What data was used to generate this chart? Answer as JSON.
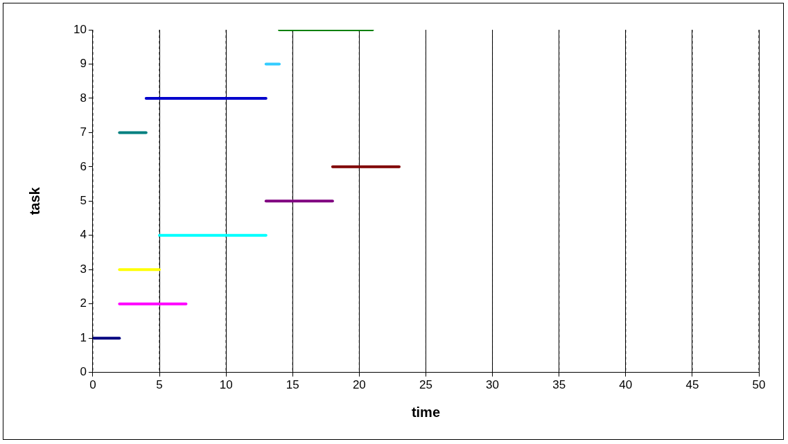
{
  "chart_data": {
    "type": "line",
    "xlabel": "time",
    "ylabel": "task",
    "xlim": [
      0,
      50
    ],
    "xticks": [
      0,
      5,
      10,
      15,
      20,
      25,
      30,
      35,
      40,
      45,
      50
    ],
    "ylim": [
      0,
      10
    ],
    "yticks": [
      0,
      1,
      2,
      3,
      4,
      5,
      6,
      7,
      8,
      9,
      10
    ],
    "grid": "x",
    "legend": false,
    "marker": "none",
    "line_style": "solid",
    "series": [
      {
        "color": "#000080",
        "x": [
          0,
          2
        ],
        "values": [
          1,
          1
        ]
      },
      {
        "color": "#ff00ff",
        "x": [
          2,
          7
        ],
        "values": [
          2,
          2
        ]
      },
      {
        "color": "#ffff00",
        "x": [
          2,
          5
        ],
        "values": [
          3,
          3
        ]
      },
      {
        "color": "#00ffff",
        "x": [
          5,
          13
        ],
        "values": [
          4,
          4
        ]
      },
      {
        "color": "#800080",
        "x": [
          13,
          18
        ],
        "values": [
          5,
          5
        ]
      },
      {
        "color": "#800000",
        "x": [
          18,
          23
        ],
        "values": [
          6,
          6
        ]
      },
      {
        "color": "#008080",
        "x": [
          2,
          4
        ],
        "values": [
          7,
          7
        ]
      },
      {
        "color": "#0000cc",
        "x": [
          4,
          13
        ],
        "values": [
          8,
          8
        ]
      },
      {
        "color": "#33ccff",
        "x": [
          13,
          14
        ],
        "values": [
          9,
          9
        ]
      },
      {
        "color": "#008000",
        "x": [
          14,
          21
        ],
        "values": [
          10,
          10
        ]
      }
    ]
  }
}
